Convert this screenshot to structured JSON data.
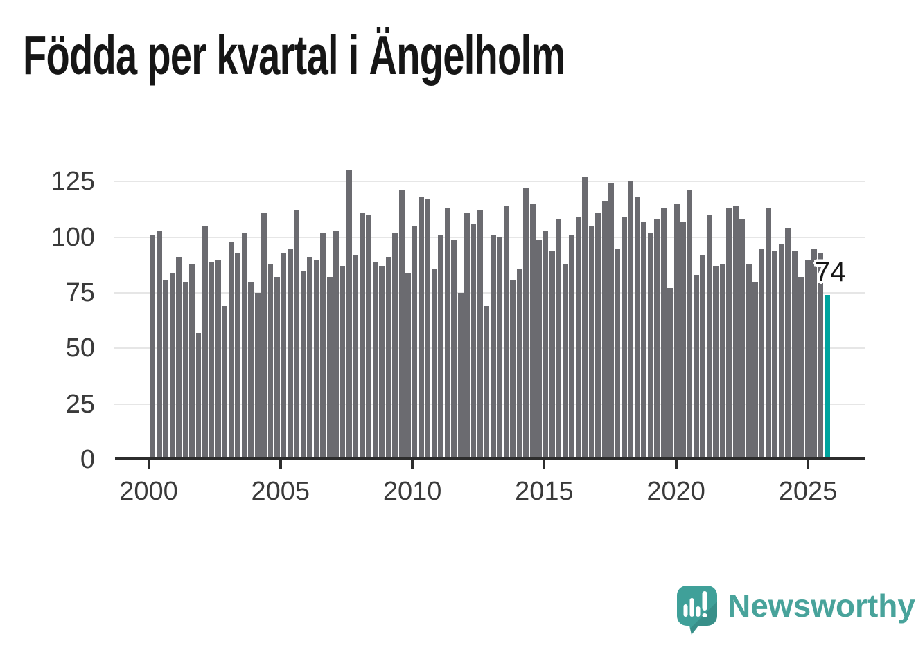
{
  "title": "Födda per kvartal i Ängelholm",
  "chart_data": {
    "type": "bar",
    "title": "Födda per kvartal i Ängelholm",
    "xlabel": "",
    "ylabel": "",
    "x_unit": "quarter",
    "grid": true,
    "legend": "none",
    "ylim": [
      0,
      135
    ],
    "yticks": [
      0,
      25,
      50,
      75,
      100,
      125
    ],
    "xticks": {
      "labels": [
        "2000",
        "2005",
        "2010",
        "2015",
        "2020",
        "2025"
      ]
    },
    "quarters": [
      "2000Q1",
      "2000Q2",
      "2000Q3",
      "2000Q4",
      "2001Q1",
      "2001Q2",
      "2001Q3",
      "2001Q4",
      "2002Q1",
      "2002Q2",
      "2002Q3",
      "2002Q4",
      "2003Q1",
      "2003Q2",
      "2003Q3",
      "2003Q4",
      "2004Q1",
      "2004Q2",
      "2004Q3",
      "2004Q4",
      "2005Q1",
      "2005Q2",
      "2005Q3",
      "2005Q4",
      "2006Q1",
      "2006Q2",
      "2006Q3",
      "2006Q4",
      "2007Q1",
      "2007Q2",
      "2007Q3",
      "2007Q4",
      "2008Q1",
      "2008Q2",
      "2008Q3",
      "2008Q4",
      "2009Q1",
      "2009Q2",
      "2009Q3",
      "2009Q4",
      "2010Q1",
      "2010Q2",
      "2010Q3",
      "2010Q4",
      "2011Q1",
      "2011Q2",
      "2011Q3",
      "2011Q4",
      "2012Q1",
      "2012Q2",
      "2012Q3",
      "2012Q4",
      "2013Q1",
      "2013Q2",
      "2013Q3",
      "2013Q4",
      "2014Q1",
      "2014Q2",
      "2014Q3",
      "2014Q4",
      "2015Q1",
      "2015Q2",
      "2015Q3",
      "2015Q4",
      "2016Q1",
      "2016Q2",
      "2016Q3",
      "2016Q4",
      "2017Q1",
      "2017Q2",
      "2017Q3",
      "2017Q4",
      "2018Q1",
      "2018Q2",
      "2018Q3",
      "2018Q4",
      "2019Q1",
      "2019Q2",
      "2019Q3",
      "2019Q4",
      "2020Q1",
      "2020Q2",
      "2020Q3",
      "2020Q4",
      "2021Q1",
      "2021Q2",
      "2021Q3",
      "2021Q4",
      "2022Q1",
      "2022Q2",
      "2022Q3",
      "2022Q4",
      "2023Q1",
      "2023Q2",
      "2023Q3",
      "2023Q4",
      "2024Q1",
      "2024Q2",
      "2024Q3",
      "2024Q4",
      "2025Q1",
      "2025Q2",
      "2025Q3",
      "2025Q4"
    ],
    "values": [
      101,
      103,
      81,
      84,
      91,
      80,
      88,
      57,
      105,
      89,
      90,
      69,
      98,
      93,
      102,
      80,
      75,
      111,
      88,
      82,
      93,
      95,
      112,
      85,
      91,
      90,
      102,
      82,
      103,
      87,
      130,
      92,
      111,
      110,
      89,
      87,
      91,
      102,
      121,
      84,
      105,
      118,
      117,
      86,
      101,
      113,
      99,
      75,
      111,
      106,
      112,
      69,
      101,
      100,
      114,
      81,
      86,
      122,
      115,
      99,
      103,
      94,
      108,
      88,
      101,
      109,
      127,
      105,
      111,
      116,
      124,
      95,
      109,
      125,
      118,
      107,
      102,
      108,
      113,
      77,
      115,
      107,
      121,
      83,
      92,
      110,
      87,
      88,
      113,
      114,
      108,
      88,
      80,
      95,
      113,
      94,
      97,
      104,
      94,
      82,
      90,
      95,
      93,
      74
    ],
    "highlight": {
      "quarter": "2025Q4",
      "value": 74,
      "label": "74",
      "color": "#00a49e"
    },
    "colors": {
      "bar": "#6b6b70",
      "highlight": "#00a49e",
      "axis": "#2d2d2d",
      "grid": "#e6e6e6",
      "tick_label": "#3a3a3a",
      "title": "#161616",
      "annotation": "#161616"
    }
  },
  "branding": {
    "name": "Newsworthy",
    "icon": "newsworthy-speech-bubble-bar-chart-icon",
    "text_color": "#48a39b",
    "icon_color": "#3fa099",
    "icon_glyph_color": "#ffffff"
  }
}
